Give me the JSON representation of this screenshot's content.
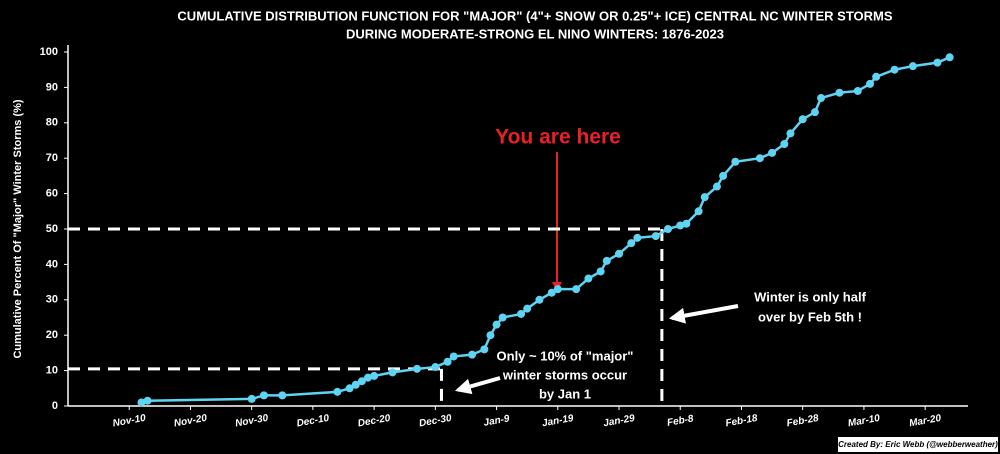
{
  "chart_data": {
    "type": "line",
    "title": "CUMULATIVE DISTRIBUTION FUNCTION FOR \"MAJOR\" (4\"+ SNOW OR 0.25\"+ ICE) CENTRAL NC WINTER STORMS",
    "subtitle": "DURING MODERATE-STRONG EL NINO WINTERS: 1876-2023",
    "ylabel": "Cumulative Percent Of \"Major\" Winter Storms (%)",
    "x": [
      "Nov-12",
      "Nov-13",
      "Nov-30",
      "Dec-2",
      "Dec-5",
      "Dec-14",
      "Dec-16",
      "Dec-17",
      "Dec-18",
      "Dec-19",
      "Dec-20",
      "Dec-23",
      "Dec-27",
      "Dec-30",
      "Jan-1",
      "Jan-2",
      "Jan-5",
      "Jan-7",
      "Jan-8",
      "Jan-9",
      "Jan-10",
      "Jan-13",
      "Jan-14",
      "Jan-16",
      "Jan-18",
      "Jan-19",
      "Jan-22",
      "Jan-24",
      "Jan-26",
      "Jan-27",
      "Jan-29",
      "Jan-31",
      "Feb-1",
      "Feb-4",
      "Feb-6",
      "Feb-8",
      "Feb-9",
      "Feb-11",
      "Feb-12",
      "Feb-14",
      "Feb-15",
      "Feb-17",
      "Feb-21",
      "Feb-23",
      "Feb-25",
      "Feb-26",
      "Feb-28",
      "Mar-2",
      "Mar-3",
      "Mar-6",
      "Mar-9",
      "Mar-11",
      "Mar-12",
      "Mar-15",
      "Mar-18",
      "Mar-22",
      "Mar-24"
    ],
    "series": [
      {
        "name": "CDF",
        "color": "#5fd4f2",
        "values": [
          1,
          1.5,
          2,
          3,
          3,
          4,
          5,
          6,
          7,
          8,
          8.5,
          9.5,
          10.5,
          11,
          12.5,
          14,
          14.5,
          16,
          20,
          23,
          25,
          26,
          27.5,
          30,
          32,
          33,
          33,
          36,
          38,
          41,
          43,
          46,
          47.5,
          48,
          50,
          51,
          51.5,
          55,
          59,
          62,
          65,
          69,
          70,
          71.5,
          74,
          77,
          81,
          83,
          87,
          88.5,
          89,
          91,
          93,
          95,
          96,
          97,
          98.5
        ]
      }
    ],
    "xlim": [
      "Oct-31",
      "Mar-27"
    ],
    "xticks": [
      "Nov-10",
      "Nov-20",
      "Nov-30",
      "Dec-10",
      "Dec-20",
      "Dec-30",
      "Jan-9",
      "Jan-19",
      "Jan-29",
      "Feb-8",
      "Feb-18",
      "Feb-28",
      "Mar-10",
      "Mar-20"
    ],
    "ylim": [
      0,
      100
    ],
    "yticks": [
      0,
      10,
      20,
      30,
      40,
      50,
      60,
      70,
      80,
      90,
      100
    ],
    "reference_lines": [
      {
        "x": "Dec-31",
        "y": 10.5
      },
      {
        "x": "Feb-5",
        "y": 50
      }
    ],
    "annotations": [
      {
        "lines": [
          "You are here"
        ],
        "color": "#e8202a"
      },
      {
        "lines": [
          "Only ~ 10% of \"major\"",
          "winter storms occur",
          "by Jan 1"
        ],
        "color": "#ffffff"
      },
      {
        "lines": [
          "Winter is only half",
          "over by Feb 5th !"
        ],
        "color": "#ffffff"
      }
    ],
    "credit": "Created By: Eric Webb (@webberweather)"
  }
}
